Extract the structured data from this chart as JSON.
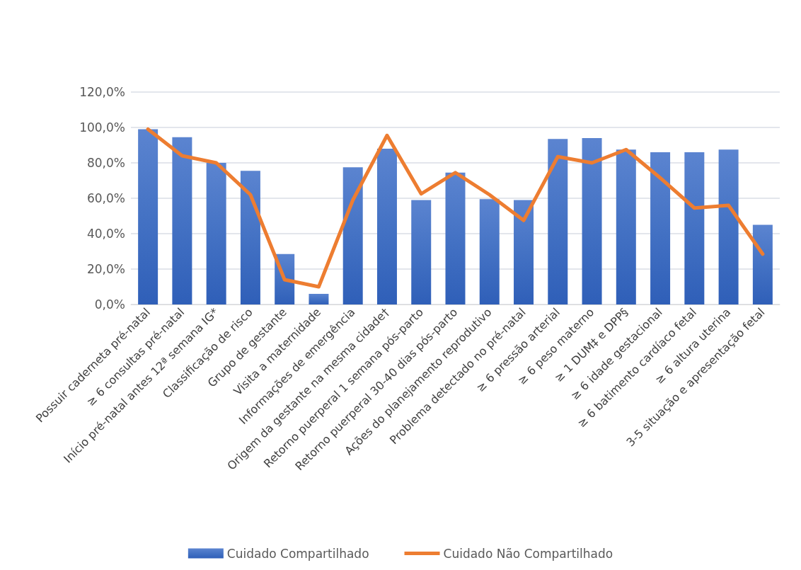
{
  "chart_data": {
    "type": "bar",
    "categories": [
      "Possuir caderneta pré-natal",
      "≥ 6 consultas pré-natal",
      "Início pré-natal antes 12ª semana IG*",
      "Classificação de risco",
      "Grupo de gestante",
      "Visita a maternidade",
      "Informações de emergência",
      "Origem da gestante na mesma cidade†",
      "Retorno puerperal 1 semana pós-parto",
      "Retorno puerperal 30-40 dias pós-parto",
      "Ações do planejamento reprodutivo",
      "Problema detectado no pré-natal",
      "≥ 6 pressão arterial",
      "≥ 6 peso materno",
      "≥ 1 DUM‡ e DPP§",
      "≥ 6 idade gestacional",
      "≥ 6 batimento cardíaco fetal",
      "≥ 6 altura uterina",
      "3-5 situação e apresentação fetal"
    ],
    "series": [
      {
        "name": "Cuidado Compartilhado",
        "color": "#4472c4",
        "values": [
          99,
          94.5,
          80,
          75.5,
          28.5,
          6,
          77.5,
          88,
          59,
          74.5,
          59.5,
          59,
          93.5,
          94,
          87.5,
          86,
          86,
          87.5,
          45
        ]
      },
      {
        "name": "Cuidado Não Compartilhado",
        "type": "line",
        "color": "#ed7d31",
        "values": [
          99,
          84,
          80,
          62,
          14,
          10,
          59,
          95.5,
          62.5,
          74.5,
          62,
          47.5,
          83.5,
          80,
          87.5,
          71.5,
          54.5,
          56,
          28.5
        ]
      }
    ],
    "ylim": [
      0,
      120
    ],
    "yticks": [
      {
        "value": 0,
        "label": "0,0%"
      },
      {
        "value": 20,
        "label": "20,0%"
      },
      {
        "value": 40,
        "label": "40,0%"
      },
      {
        "value": 60,
        "label": "60,0%"
      },
      {
        "value": 80,
        "label": "80,0%"
      },
      {
        "value": 100,
        "label": "100,0%"
      },
      {
        "value": 120,
        "label": "120,0%"
      }
    ],
    "grid": "y",
    "legend": "bottom",
    "marker": "none",
    "line_style": "solid"
  }
}
